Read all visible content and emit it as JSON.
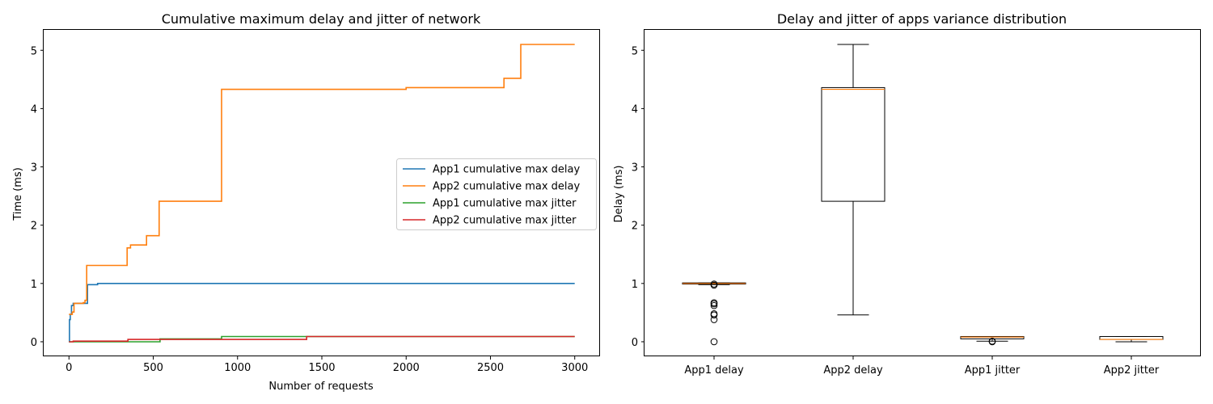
{
  "chart_data": [
    {
      "type": "line",
      "title": "Cumulative maximum delay and jitter of network",
      "xlabel": "Number of requests",
      "ylabel": "Time (ms)",
      "xlim": [
        -150,
        3150
      ],
      "ylim": [
        -0.25,
        5.35
      ],
      "xticks": [
        0,
        500,
        1000,
        1500,
        2000,
        2500,
        3000
      ],
      "yticks": [
        0,
        1,
        2,
        3,
        4,
        5
      ],
      "grid": false,
      "legend_position": "center-right",
      "series": [
        {
          "name": "App1 cumulative max delay",
          "color": "#1f77b4",
          "step": true,
          "points": [
            [
              0,
              0.0
            ],
            [
              3,
              0.38
            ],
            [
              8,
              0.47
            ],
            [
              15,
              0.62
            ],
            [
              25,
              0.66
            ],
            [
              110,
              0.98
            ],
            [
              170,
              1.0
            ],
            [
              3000,
              1.0
            ]
          ]
        },
        {
          "name": "App2 cumulative max delay",
          "color": "#ff7f0e",
          "step": true,
          "points": [
            [
              0,
              0.47
            ],
            [
              20,
              0.51
            ],
            [
              30,
              0.66
            ],
            [
              85,
              0.67
            ],
            [
              95,
              0.71
            ],
            [
              105,
              1.31
            ],
            [
              345,
              1.61
            ],
            [
              365,
              1.66
            ],
            [
              460,
              1.82
            ],
            [
              535,
              2.41
            ],
            [
              905,
              4.33
            ],
            [
              2000,
              4.36
            ],
            [
              2580,
              4.52
            ],
            [
              2680,
              5.1
            ],
            [
              3000,
              5.1
            ]
          ]
        },
        {
          "name": "App1 cumulative max jitter",
          "color": "#2ca02c",
          "step": true,
          "points": [
            [
              0,
              0.0
            ],
            [
              540,
              0.05
            ],
            [
              905,
              0.09
            ],
            [
              3000,
              0.09
            ]
          ]
        },
        {
          "name": "App2 cumulative max jitter",
          "color": "#d62728",
          "step": true,
          "points": [
            [
              0,
              0.0
            ],
            [
              25,
              0.01
            ],
            [
              350,
              0.04
            ],
            [
              1410,
              0.09
            ],
            [
              3000,
              0.09
            ]
          ]
        }
      ]
    },
    {
      "type": "box",
      "title": "Delay and jitter of apps variance distribution",
      "xlabel": "",
      "ylabel": "Delay (ms)",
      "ylim": [
        -0.25,
        5.35
      ],
      "yticks": [
        0,
        1,
        2,
        3,
        4,
        5
      ],
      "grid": false,
      "median_color": "#ff7f0e",
      "categories": [
        "App1 delay",
        "App2 delay",
        "App1 jitter",
        "App2 jitter"
      ],
      "boxes": [
        {
          "whisker_low": 0.98,
          "q1": 0.99,
          "median": 1.0,
          "q3": 1.01,
          "whisker_high": 1.01,
          "outliers": [
            0.0,
            0.38,
            0.46,
            0.48,
            0.62,
            0.65,
            0.67,
            0.97,
            0.99
          ]
        },
        {
          "whisker_low": 0.46,
          "q1": 2.41,
          "median": 4.33,
          "q3": 4.36,
          "whisker_high": 5.1,
          "outliers": []
        },
        {
          "whisker_low": 0.01,
          "q1": 0.05,
          "median": 0.08,
          "q3": 0.09,
          "whisker_high": 0.09,
          "outliers": [
            0.0,
            0.01
          ]
        },
        {
          "whisker_low": 0.0,
          "q1": 0.04,
          "median": 0.04,
          "q3": 0.09,
          "whisker_high": 0.09,
          "outliers": []
        }
      ]
    }
  ]
}
